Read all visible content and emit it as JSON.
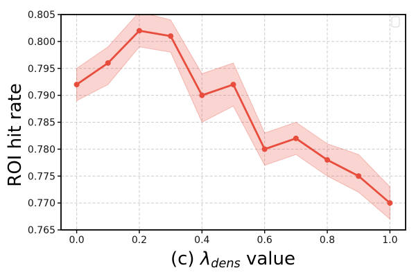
{
  "figure": {
    "background": "#ffffff",
    "ylabel": "ROI hit rate",
    "xlabel_parts": {
      "prefix": "(c) ",
      "lambda": "λ",
      "subscript": "dens",
      "suffix": " value"
    }
  },
  "chart_data": {
    "type": "line",
    "title": "",
    "xlabel": "(c) λ_dens value",
    "ylabel": "ROI hit rate",
    "x": [
      0.0,
      0.1,
      0.2,
      0.3,
      0.4,
      0.5,
      0.6,
      0.7,
      0.8,
      0.9,
      1.0
    ],
    "series": [
      {
        "name": "ROI hit rate",
        "values": [
          0.792,
          0.796,
          0.802,
          0.801,
          0.79,
          0.792,
          0.78,
          0.782,
          0.778,
          0.775,
          0.77
        ],
        "color": "#e74c3c",
        "marker": "circle",
        "marker_radius": 4,
        "line_width": 2.8
      }
    ],
    "band": {
      "upper": [
        0.795,
        0.799,
        0.8055,
        0.804,
        0.794,
        0.796,
        0.783,
        0.785,
        0.781,
        0.779,
        0.773
      ],
      "lower": [
        0.789,
        0.792,
        0.799,
        0.798,
        0.785,
        0.788,
        0.777,
        0.779,
        0.775,
        0.772,
        0.767
      ],
      "color": "#e74c3c",
      "opacity": 0.24
    },
    "xlim": [
      -0.05,
      1.05
    ],
    "ylim": [
      0.765,
      0.805
    ],
    "xticks": {
      "values": [
        0.0,
        0.2,
        0.4,
        0.6,
        0.8,
        1.0
      ],
      "labels": [
        "0.0",
        "0.2",
        "0.4",
        "0.6",
        "0.8",
        "1.0"
      ]
    },
    "yticks": {
      "values": [
        0.765,
        0.77,
        0.775,
        0.78,
        0.785,
        0.79,
        0.795,
        0.8,
        0.805
      ],
      "labels": [
        "0.765",
        "0.770",
        "0.775",
        "0.780",
        "0.785",
        "0.790",
        "0.795",
        "0.800",
        "0.805"
      ]
    },
    "grid": {
      "show": true,
      "color": "#cbcbcb",
      "dash": "4,2.5"
    },
    "legend": {
      "visible": true,
      "entries": [],
      "position": "upper-right",
      "border_color": "#d5d5d5"
    },
    "spine_color": "#000000",
    "tick_label_color": "#111111",
    "tick_font_size": 14
  }
}
